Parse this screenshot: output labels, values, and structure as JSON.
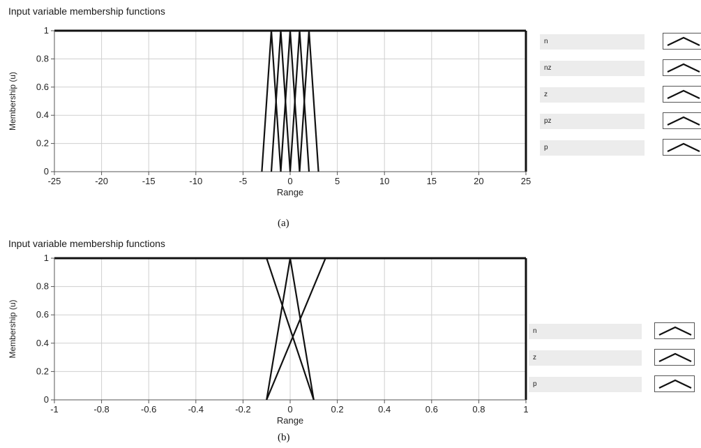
{
  "chart_data": [
    {
      "type": "line",
      "title": "Input variable membership functions",
      "xlabel": "Range",
      "ylabel": "Membership (u)",
      "xlim": [
        -25,
        25
      ],
      "ylim": [
        0,
        1
      ],
      "xticks": [
        -25,
        -20,
        -15,
        -10,
        -5,
        0,
        5,
        10,
        15,
        20,
        25
      ],
      "xtick_labels": [
        "-25",
        "-20",
        "-15",
        "-10",
        "-5",
        "0",
        "5",
        "10",
        "15",
        "20",
        "25"
      ],
      "yticks": [
        0,
        0.2,
        0.4,
        0.6,
        0.8,
        1
      ],
      "ytick_labels": [
        "0",
        "0.2",
        "0.4",
        "0.6",
        "0.8",
        "1"
      ],
      "grid": true,
      "legend_position": "right",
      "caption": "(a)",
      "series": [
        {
          "name": "n",
          "shape": "triangle",
          "x": [
            -3,
            -2,
            -1
          ],
          "y": [
            0,
            1,
            0
          ]
        },
        {
          "name": "nz",
          "shape": "triangle",
          "x": [
            -2,
            -1,
            0
          ],
          "y": [
            0,
            1,
            0
          ]
        },
        {
          "name": "z",
          "shape": "triangle",
          "x": [
            -1,
            0,
            1
          ],
          "y": [
            0,
            1,
            0
          ]
        },
        {
          "name": "pz",
          "shape": "triangle",
          "x": [
            0,
            1,
            2
          ],
          "y": [
            0,
            1,
            0
          ]
        },
        {
          "name": "p",
          "shape": "triangle",
          "x": [
            1,
            2,
            3
          ],
          "y": [
            0,
            1,
            0
          ]
        }
      ]
    },
    {
      "type": "line",
      "title": "Input variable membership functions",
      "xlabel": "Range",
      "ylabel": "Membership (u)",
      "xlim": [
        -1,
        1
      ],
      "ylim": [
        0,
        1
      ],
      "xticks": [
        -1,
        -0.8,
        -0.6,
        -0.4,
        -0.2,
        0,
        0.2,
        0.4,
        0.6,
        0.8,
        1
      ],
      "xtick_labels": [
        "-1",
        "-0.8",
        "-0.6",
        "-0.4",
        "-0.2",
        "0",
        "0.2",
        "0.4",
        "0.6",
        "0.8",
        "1"
      ],
      "yticks": [
        0,
        0.2,
        0.4,
        0.6,
        0.8,
        1
      ],
      "ytick_labels": [
        "0",
        "0.2",
        "0.4",
        "0.6",
        "0.8",
        "1"
      ],
      "grid": true,
      "legend_position": "right",
      "caption": "(b)",
      "series": [
        {
          "name": "n",
          "shape": "triangle",
          "x": [
            -0.15,
            -0.1,
            0.1
          ],
          "y": [
            1,
            1,
            0
          ]
        },
        {
          "name": "z",
          "shape": "triangle",
          "x": [
            -0.1,
            0,
            0.1
          ],
          "y": [
            0,
            1,
            0
          ]
        },
        {
          "name": "p",
          "shape": "triangle",
          "x": [
            -0.1,
            0.15,
            0.2
          ],
          "y": [
            0,
            1,
            1
          ]
        }
      ]
    }
  ]
}
